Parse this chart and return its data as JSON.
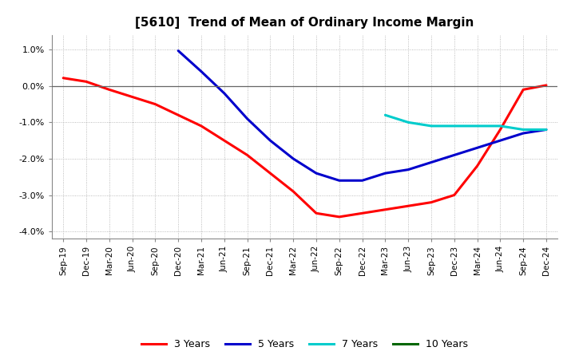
{
  "title": "[5610]  Trend of Mean of Ordinary Income Margin",
  "title_fontsize": 11,
  "ylim": [
    -0.042,
    0.014
  ],
  "yticks": [
    -0.04,
    -0.03,
    -0.02,
    -0.01,
    0.0,
    0.01
  ],
  "ytick_labels": [
    "-4.0%",
    "-3.0%",
    "-2.0%",
    "-1.0%",
    "0.0%",
    "1.0%"
  ],
  "background_color": "#ffffff",
  "plot_bg_color": "#ffffff",
  "grid_color": "#aaaaaa",
  "x_labels": [
    "Sep-19",
    "Dec-19",
    "Mar-20",
    "Jun-20",
    "Sep-20",
    "Dec-20",
    "Mar-21",
    "Jun-21",
    "Sep-21",
    "Dec-21",
    "Mar-22",
    "Jun-22",
    "Sep-22",
    "Dec-22",
    "Mar-23",
    "Jun-23",
    "Sep-23",
    "Dec-23",
    "Mar-24",
    "Jun-24",
    "Sep-24",
    "Dec-24"
  ],
  "series_order": [
    "3 Years",
    "5 Years",
    "7 Years",
    "10 Years"
  ],
  "series": {
    "3 Years": {
      "color": "#ff0000",
      "linewidth": 2.2,
      "data_x": [
        0,
        1,
        2,
        3,
        4,
        5,
        6,
        7,
        8,
        9,
        10,
        11,
        12,
        13,
        14,
        15,
        16,
        17,
        18,
        19,
        20,
        21
      ],
      "data_y": [
        0.0022,
        0.0012,
        -0.001,
        -0.003,
        -0.005,
        -0.008,
        -0.011,
        -0.015,
        -0.019,
        -0.024,
        -0.029,
        -0.035,
        -0.036,
        -0.035,
        -0.034,
        -0.033,
        -0.032,
        -0.03,
        -0.022,
        -0.012,
        -0.001,
        0.0002
      ]
    },
    "5 Years": {
      "color": "#0000cc",
      "linewidth": 2.2,
      "data_x": [
        5,
        6,
        7,
        8,
        9,
        10,
        11,
        12,
        13,
        14,
        15,
        16,
        17,
        18,
        19,
        20,
        21
      ],
      "data_y": [
        0.0097,
        0.004,
        -0.002,
        -0.009,
        -0.015,
        -0.02,
        -0.024,
        -0.026,
        -0.026,
        -0.024,
        -0.023,
        -0.021,
        -0.019,
        -0.017,
        -0.015,
        -0.013,
        -0.012
      ]
    },
    "7 Years": {
      "color": "#00cccc",
      "linewidth": 2.2,
      "data_x": [
        14,
        15,
        16,
        17,
        18,
        19,
        20,
        21
      ],
      "data_y": [
        -0.008,
        -0.01,
        -0.011,
        -0.011,
        -0.011,
        -0.011,
        -0.012,
        -0.012
      ]
    },
    "10 Years": {
      "color": "#006600",
      "linewidth": 2.2,
      "data_x": [],
      "data_y": []
    }
  },
  "legend_entries": [
    "3 Years",
    "5 Years",
    "7 Years",
    "10 Years"
  ],
  "legend_colors": [
    "#ff0000",
    "#0000cc",
    "#00cccc",
    "#006600"
  ]
}
